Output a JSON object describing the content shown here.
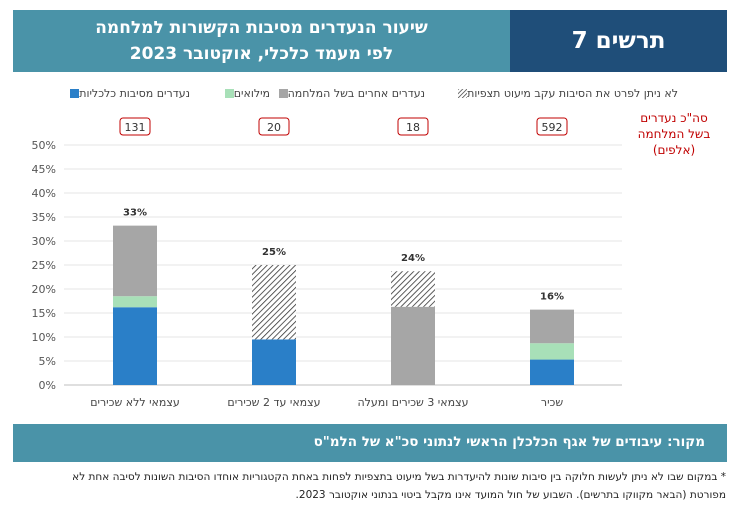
{
  "header": {
    "title_line1": "שיעור הנעדרים מסיבות הקשורות למלחמה",
    "title_line2": "לפי מעמד כלכלי, אוקטובר 2023",
    "figure_label": "תרשים 7"
  },
  "colors": {
    "economic": "#2a7fc8",
    "reserve": "#a8e0b8",
    "war_other": "#a6a6a6",
    "unspecified_hatch": "#333333",
    "totals_red": "#c00000",
    "header_blue": "#1f4e79",
    "header_teal": "#4a93a8"
  },
  "chart_data": {
    "type": "bar",
    "stacked": true,
    "categories": [
      "עצמאי ללא שכירים",
      "עצמאי עד 2 שכירים",
      "עצמאי 3 שכירים ומעלה",
      "שכיר"
    ],
    "series": [
      {
        "name": "נעדרים מסיבות כלכליות",
        "values": [
          16.2,
          9.5,
          0,
          5.3
        ]
      },
      {
        "name": "מילואים",
        "values": [
          2.3,
          0,
          0,
          3.4
        ]
      },
      {
        "name": "נעדרים אחרים בשל המלחמה",
        "values": [
          14.7,
          0,
          16.3,
          7.0
        ]
      },
      {
        "name": "לא ניתן לפרט את הסיבות עקב מיעוט תצפיות",
        "values": [
          0,
          15.5,
          7.4,
          0
        ]
      }
    ],
    "totals_labels": [
      "33%",
      "25%",
      "24%",
      "16%"
    ],
    "war_absent_thousands": [
      "131",
      "20",
      "18",
      "592"
    ],
    "war_absent_caption": [
      "סה\"כ נעדרים",
      "בשל המלחמה",
      "(אלפים)"
    ],
    "y_ticks": [
      "0%",
      "5%",
      "10%",
      "15%",
      "20%",
      "25%",
      "30%",
      "35%",
      "40%",
      "45%",
      "50%"
    ],
    "ylim": [
      0,
      50
    ],
    "grid": true,
    "legend_position": "top"
  },
  "source": "מקור: עיבודים של אגף הכלכלן הראשי לנתוני סכ\"א של הלמ\"ס",
  "footnote": "* במקום שבו לא ניתן לעשות חלוקה בין סיבות שונות להיעדרות בשל מיעוט בתצפיות לפחות באחת הקטגוריות אוחדו הסיבות השונות לסיבה אחת לא מפורטת (הבאר מקווקו בתרשים). השבוע של חול המועד אינו מקבל ביטוי בנתוני אוקטובר 2023."
}
